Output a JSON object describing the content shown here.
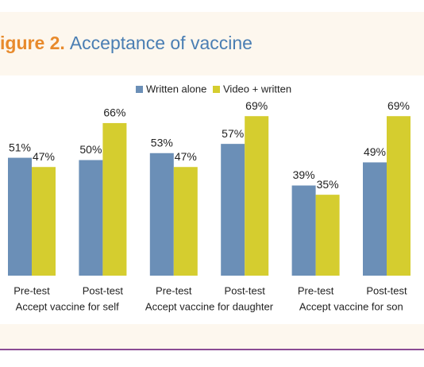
{
  "chart_data": {
    "type": "bar",
    "title_prefix": "igure 2.",
    "title": "Acceptance of vaccine",
    "categories": [
      "Pre-test",
      "Post-test",
      "Pre-test",
      "Post-test",
      "Pre-test",
      "Post-test"
    ],
    "groups": [
      "Accept vaccine for self",
      "Accept vaccine for daughter",
      "Accept vaccine for son"
    ],
    "series": [
      {
        "name": "Written alone",
        "color": "#6b8fb7",
        "values": [
          51,
          50,
          53,
          57,
          39,
          49
        ],
        "value_labels": [
          "51%",
          "50%",
          "53%",
          "57%",
          "39%",
          "49%"
        ]
      },
      {
        "name": "Video + written",
        "color": "#d5cd2f",
        "values": [
          47,
          66,
          47,
          69,
          35,
          69
        ],
        "value_labels": [
          "47%",
          "66%",
          "47%",
          "69%",
          "35%",
          "69%"
        ]
      }
    ],
    "ylim": [
      0,
      100
    ]
  }
}
